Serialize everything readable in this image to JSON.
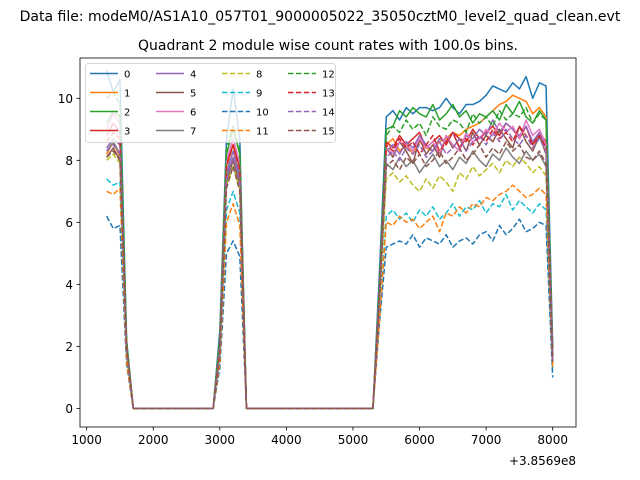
{
  "figure": {
    "suptitle": "Data file: modeM0/AS1A10_057T01_9000005022_35050cztM0_level2_quad_clean.evt",
    "title": "Quadrant 2 module wise count rates with 100.0s bins."
  },
  "chart_data": {
    "type": "line",
    "title": "Quadrant 2 module wise count rates with 100.0s bins.",
    "xlabel": "",
    "ylabel": "",
    "x_offset_label": "+3.8569e8",
    "xlim": [
      900,
      8350
    ],
    "ylim": [
      -0.6,
      11.3
    ],
    "xticks": [
      1000,
      2000,
      3000,
      4000,
      5000,
      6000,
      7000,
      8000
    ],
    "xtick_labels": [
      "1000",
      "2000",
      "3000",
      "4000",
      "5000",
      "6000",
      "7000",
      "8000"
    ],
    "yticks": [
      0,
      2,
      4,
      6,
      8,
      10
    ],
    "ytick_labels": [
      "0",
      "2",
      "4",
      "6",
      "8",
      "10"
    ],
    "grid": false,
    "legend": {
      "position": "top-left",
      "columns": 4
    },
    "x": [
      1300,
      1400,
      1500,
      1600,
      1700,
      1800,
      1900,
      2000,
      2100,
      2200,
      2300,
      2400,
      2500,
      2600,
      2700,
      2800,
      2900,
      3000,
      3100,
      3200,
      3300,
      3400,
      3500,
      3600,
      3700,
      3800,
      3900,
      4000,
      4100,
      4200,
      4300,
      4400,
      4500,
      4600,
      4700,
      4800,
      4900,
      5000,
      5100,
      5200,
      5300,
      5400,
      5500,
      5600,
      5700,
      5800,
      5900,
      6000,
      6100,
      6200,
      6300,
      6400,
      6500,
      6600,
      6700,
      6800,
      6900,
      7000,
      7100,
      7200,
      7300,
      7400,
      7500,
      7600,
      7700,
      7800,
      7900,
      8000
    ],
    "series": [
      {
        "name": "0",
        "color": "#1f77b4",
        "dash": "solid",
        "values": [
          10.9,
          10.2,
          10.6,
          2.2,
          0,
          0,
          0,
          0,
          0,
          0,
          0,
          0,
          0,
          0,
          0,
          0,
          0,
          2.5,
          8.7,
          10.3,
          8.7,
          0,
          0,
          0,
          0,
          0,
          0,
          0,
          0,
          0,
          0,
          0,
          0,
          0,
          0,
          0,
          0,
          0,
          0,
          0,
          0,
          4.5,
          9.4,
          9.6,
          9.3,
          9.7,
          9.5,
          9.7,
          9.7,
          9.6,
          9.7,
          10.0,
          9.7,
          9.5,
          9.8,
          9.8,
          9.9,
          10.1,
          10.4,
          10.3,
          10.2,
          10.5,
          10.3,
          10.7,
          10.0,
          10.5,
          10.4,
          2.0
        ]
      },
      {
        "name": "1",
        "color": "#ff7f0e",
        "dash": "solid",
        "values": [
          8.2,
          8.6,
          8.1,
          2.0,
          0,
          0,
          0,
          0,
          0,
          0,
          0,
          0,
          0,
          0,
          0,
          0,
          0,
          2.0,
          7.8,
          8.5,
          7.5,
          0,
          0,
          0,
          0,
          0,
          0,
          0,
          0,
          0,
          0,
          0,
          0,
          0,
          0,
          0,
          0,
          0,
          0,
          0,
          0,
          3.8,
          8.5,
          8.7,
          8.3,
          8.5,
          8.2,
          8.6,
          8.4,
          8.3,
          8.6,
          8.7,
          8.9,
          8.8,
          9.0,
          9.1,
          9.2,
          9.4,
          9.6,
          9.8,
          9.9,
          10.1,
          10.0,
          9.9,
          9.5,
          9.7,
          9.4,
          1.6
        ]
      },
      {
        "name": "2",
        "color": "#2ca02c",
        "dash": "solid",
        "values": [
          9.2,
          9.6,
          9.4,
          2.1,
          0,
          0,
          0,
          0,
          0,
          0,
          0,
          0,
          0,
          0,
          0,
          0,
          0,
          2.2,
          8.2,
          9.0,
          8.2,
          0,
          0,
          0,
          0,
          0,
          0,
          0,
          0,
          0,
          0,
          0,
          0,
          0,
          0,
          0,
          0,
          0,
          0,
          0,
          0,
          4.0,
          9.0,
          9.1,
          9.6,
          9.4,
          9.7,
          9.5,
          9.4,
          9.8,
          9.3,
          9.5,
          9.8,
          9.4,
          9.6,
          9.2,
          9.5,
          9.4,
          9.6,
          9.3,
          9.8,
          9.5,
          9.9,
          9.4,
          9.2,
          9.6,
          9.3,
          1.8
        ]
      },
      {
        "name": "3",
        "color": "#d62728",
        "dash": "solid",
        "values": [
          8.8,
          9.2,
          8.9,
          2.0,
          0,
          0,
          0,
          0,
          0,
          0,
          0,
          0,
          0,
          0,
          0,
          0,
          0,
          2.0,
          7.9,
          8.5,
          7.8,
          0,
          0,
          0,
          0,
          0,
          0,
          0,
          0,
          0,
          0,
          0,
          0,
          0,
          0,
          0,
          0,
          0,
          0,
          0,
          0,
          3.9,
          8.6,
          8.4,
          8.8,
          8.5,
          8.7,
          8.9,
          8.4,
          8.6,
          8.8,
          8.5,
          8.9,
          8.7,
          8.6,
          9.0,
          8.7,
          8.9,
          9.1,
          8.8,
          9.2,
          9.0,
          8.7,
          9.1,
          8.5,
          8.9,
          8.6,
          1.7
        ]
      },
      {
        "name": "4",
        "color": "#9467bd",
        "dash": "solid",
        "values": [
          8.4,
          8.7,
          8.5,
          1.9,
          0,
          0,
          0,
          0,
          0,
          0,
          0,
          0,
          0,
          0,
          0,
          0,
          0,
          1.9,
          7.6,
          8.3,
          7.5,
          0,
          0,
          0,
          0,
          0,
          0,
          0,
          0,
          0,
          0,
          0,
          0,
          0,
          0,
          0,
          0,
          0,
          0,
          0,
          0,
          3.7,
          8.3,
          8.5,
          8.2,
          8.6,
          8.4,
          8.8,
          8.5,
          8.3,
          8.7,
          8.6,
          8.9,
          8.4,
          8.8,
          8.7,
          9.0,
          8.8,
          9.3,
          8.9,
          9.2,
          9.0,
          8.8,
          9.1,
          8.6,
          8.9,
          8.4,
          1.6
        ]
      },
      {
        "name": "5",
        "color": "#8c564b",
        "dash": "solid",
        "values": [
          8.1,
          8.4,
          8.0,
          1.9,
          0,
          0,
          0,
          0,
          0,
          0,
          0,
          0,
          0,
          0,
          0,
          0,
          0,
          1.8,
          7.3,
          8.0,
          7.2,
          0,
          0,
          0,
          0,
          0,
          0,
          0,
          0,
          0,
          0,
          0,
          0,
          0,
          0,
          0,
          0,
          0,
          0,
          0,
          0,
          3.6,
          8.4,
          8.1,
          8.6,
          8.3,
          7.9,
          8.7,
          8.2,
          8.5,
          8.1,
          8.8,
          8.4,
          8.7,
          8.3,
          8.9,
          8.5,
          8.8,
          8.6,
          9.0,
          8.7,
          8.4,
          9.1,
          8.6,
          8.3,
          8.8,
          8.2,
          1.5
        ]
      },
      {
        "name": "6",
        "color": "#e377c2",
        "dash": "solid",
        "values": [
          9.0,
          9.5,
          9.2,
          2.0,
          0,
          0,
          0,
          0,
          0,
          0,
          0,
          0,
          0,
          0,
          0,
          0,
          0,
          2.1,
          8.0,
          8.7,
          7.9,
          0,
          0,
          0,
          0,
          0,
          0,
          0,
          0,
          0,
          0,
          0,
          0,
          0,
          0,
          0,
          0,
          0,
          0,
          0,
          0,
          3.9,
          8.4,
          8.2,
          8.6,
          8.5,
          8.3,
          8.7,
          8.4,
          8.6,
          8.2,
          8.8,
          8.5,
          8.3,
          8.9,
          8.6,
          8.7,
          9.0,
          8.8,
          9.2,
          8.9,
          9.1,
          8.7,
          9.3,
          8.8,
          9.0,
          8.5,
          1.7
        ]
      },
      {
        "name": "7",
        "color": "#7f7f7f",
        "dash": "solid",
        "values": [
          8.3,
          8.6,
          8.2,
          1.9,
          0,
          0,
          0,
          0,
          0,
          0,
          0,
          0,
          0,
          0,
          0,
          0,
          0,
          1.9,
          7.5,
          8.1,
          7.4,
          0,
          0,
          0,
          0,
          0,
          0,
          0,
          0,
          0,
          0,
          0,
          0,
          0,
          0,
          0,
          0,
          0,
          0,
          0,
          0,
          3.6,
          7.9,
          7.7,
          8.1,
          7.8,
          8.0,
          7.6,
          7.9,
          8.2,
          7.8,
          8.0,
          7.7,
          8.1,
          7.9,
          8.3,
          8.0,
          7.8,
          8.2,
          8.0,
          8.4,
          8.1,
          7.9,
          8.3,
          8.0,
          8.2,
          7.8,
          1.5
        ]
      },
      {
        "name": "8",
        "color": "#bcbd22",
        "dash": "dashed",
        "values": [
          8.0,
          8.2,
          7.9,
          1.8,
          0,
          0,
          0,
          0,
          0,
          0,
          0,
          0,
          0,
          0,
          0,
          0,
          0,
          1.8,
          7.2,
          7.8,
          7.1,
          0,
          0,
          0,
          0,
          0,
          0,
          0,
          0,
          0,
          0,
          0,
          0,
          0,
          0,
          0,
          0,
          0,
          0,
          0,
          0,
          3.5,
          7.4,
          7.6,
          7.3,
          7.5,
          7.2,
          7.0,
          7.4,
          7.1,
          7.5,
          7.3,
          7.0,
          7.6,
          7.4,
          7.8,
          7.5,
          7.7,
          7.9,
          7.6,
          8.0,
          7.8,
          8.1,
          7.9,
          7.6,
          7.8,
          7.5,
          1.4
        ]
      },
      {
        "name": "9",
        "color": "#17becf",
        "dash": "dashed",
        "values": [
          7.4,
          7.2,
          7.3,
          1.6,
          0,
          0,
          0,
          0,
          0,
          0,
          0,
          0,
          0,
          0,
          0,
          0,
          0,
          1.6,
          6.4,
          7.0,
          6.3,
          0,
          0,
          0,
          0,
          0,
          0,
          0,
          0,
          0,
          0,
          0,
          0,
          0,
          0,
          0,
          0,
          0,
          0,
          0,
          0,
          3.1,
          6.2,
          6.4,
          6.1,
          6.3,
          6.0,
          6.4,
          6.2,
          6.5,
          6.1,
          6.3,
          6.6,
          6.2,
          6.5,
          6.4,
          6.7,
          6.3,
          6.6,
          6.5,
          6.9,
          6.4,
          6.7,
          6.5,
          6.3,
          6.6,
          6.4,
          1.2
        ]
      },
      {
        "name": "10",
        "color": "#1f77b4",
        "dash": "dashed",
        "values": [
          6.2,
          5.8,
          5.9,
          1.4,
          0,
          0,
          0,
          0,
          0,
          0,
          0,
          0,
          0,
          0,
          0,
          0,
          0,
          1.3,
          5.0,
          5.4,
          4.9,
          0,
          0,
          0,
          0,
          0,
          0,
          0,
          0,
          0,
          0,
          0,
          0,
          0,
          0,
          0,
          0,
          0,
          0,
          0,
          0,
          2.8,
          5.2,
          5.3,
          5.4,
          5.3,
          5.6,
          5.2,
          5.5,
          5.4,
          5.3,
          5.6,
          5.2,
          5.4,
          5.5,
          5.3,
          5.6,
          5.7,
          5.4,
          5.9,
          5.6,
          5.8,
          6.1,
          5.7,
          5.8,
          6.0,
          5.9,
          1.0
        ]
      },
      {
        "name": "11",
        "color": "#ff7f0e",
        "dash": "dashed",
        "values": [
          7.0,
          6.9,
          7.1,
          1.5,
          0,
          0,
          0,
          0,
          0,
          0,
          0,
          0,
          0,
          0,
          0,
          0,
          0,
          1.5,
          6.0,
          6.6,
          5.9,
          0,
          0,
          0,
          0,
          0,
          0,
          0,
          0,
          0,
          0,
          0,
          0,
          0,
          0,
          0,
          0,
          0,
          0,
          0,
          0,
          2.9,
          6.0,
          5.9,
          6.2,
          6.0,
          6.1,
          5.8,
          6.0,
          6.2,
          5.7,
          6.3,
          6.2,
          6.5,
          6.3,
          6.6,
          6.5,
          6.8,
          6.7,
          6.9,
          7.0,
          7.2,
          7.0,
          6.8,
          6.9,
          7.1,
          6.9,
          1.3
        ]
      },
      {
        "name": "12",
        "color": "#2ca02c",
        "dash": "dashed",
        "values": [
          10.0,
          10.2,
          9.8,
          2.2,
          0,
          0,
          0,
          0,
          0,
          0,
          0,
          0,
          0,
          0,
          0,
          0,
          0,
          2.3,
          8.4,
          9.1,
          8.3,
          0,
          0,
          0,
          0,
          0,
          0,
          0,
          0,
          0,
          0,
          0,
          0,
          0,
          0,
          0,
          0,
          0,
          0,
          0,
          0,
          4.1,
          8.8,
          9.1,
          8.9,
          9.3,
          9.0,
          9.2,
          8.8,
          9.4,
          9.1,
          9.0,
          9.3,
          9.2,
          8.9,
          9.5,
          9.2,
          9.4,
          9.1,
          9.6,
          9.3,
          9.5,
          9.4,
          9.7,
          9.2,
          9.5,
          9.3,
          1.8
        ]
      },
      {
        "name": "13",
        "color": "#d62728",
        "dash": "dashed",
        "values": [
          8.6,
          8.9,
          8.7,
          2.0,
          0,
          0,
          0,
          0,
          0,
          0,
          0,
          0,
          0,
          0,
          0,
          0,
          0,
          2.0,
          7.8,
          8.5,
          7.7,
          0,
          0,
          0,
          0,
          0,
          0,
          0,
          0,
          0,
          0,
          0,
          0,
          0,
          0,
          0,
          0,
          0,
          0,
          0,
          0,
          3.8,
          8.5,
          8.3,
          8.7,
          8.4,
          8.6,
          8.2,
          8.5,
          8.8,
          8.3,
          8.6,
          8.9,
          8.4,
          8.7,
          8.5,
          8.8,
          8.6,
          9.0,
          8.7,
          8.9,
          8.6,
          9.1,
          8.8,
          8.5,
          8.8,
          8.4,
          1.6
        ]
      },
      {
        "name": "14",
        "color": "#9467bd",
        "dash": "dashed",
        "values": [
          8.3,
          8.5,
          8.2,
          1.9,
          0,
          0,
          0,
          0,
          0,
          0,
          0,
          0,
          0,
          0,
          0,
          0,
          0,
          1.9,
          7.4,
          8.1,
          7.3,
          0,
          0,
          0,
          0,
          0,
          0,
          0,
          0,
          0,
          0,
          0,
          0,
          0,
          0,
          0,
          0,
          0,
          0,
          0,
          0,
          3.7,
          8.1,
          8.3,
          8.0,
          8.4,
          8.2,
          8.5,
          8.1,
          8.3,
          8.6,
          8.2,
          8.4,
          8.7,
          8.3,
          8.6,
          8.8,
          8.5,
          8.9,
          8.6,
          9.0,
          8.7,
          8.5,
          8.8,
          8.4,
          8.7,
          8.3,
          1.5
        ]
      },
      {
        "name": "15",
        "color": "#8c564b",
        "dash": "dashed",
        "values": [
          8.1,
          8.3,
          8.0,
          1.9,
          0,
          0,
          0,
          0,
          0,
          0,
          0,
          0,
          0,
          0,
          0,
          0,
          0,
          1.8,
          7.1,
          7.8,
          7.0,
          0,
          0,
          0,
          0,
          0,
          0,
          0,
          0,
          0,
          0,
          0,
          0,
          0,
          0,
          0,
          0,
          0,
          0,
          0,
          0,
          3.6,
          7.8,
          8.0,
          7.7,
          8.1,
          7.9,
          8.2,
          7.8,
          8.0,
          8.3,
          7.9,
          8.1,
          8.4,
          8.0,
          8.2,
          8.5,
          8.1,
          8.4,
          8.2,
          8.6,
          8.3,
          8.5,
          8.1,
          8.0,
          8.3,
          7.9,
          1.5
        ]
      }
    ]
  }
}
